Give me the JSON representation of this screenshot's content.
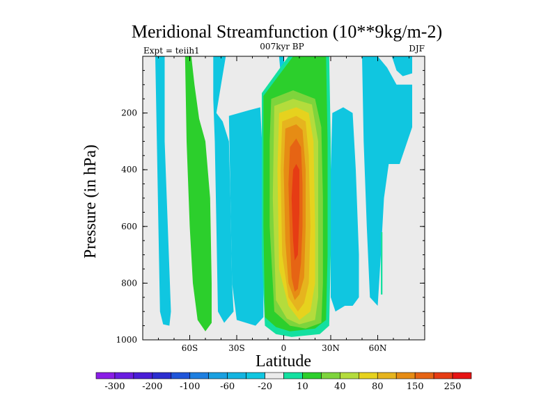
{
  "chart_data": {
    "type": "heatmap",
    "title": "Meridional Streamfunction (10**9kg/m-2)",
    "subtitle_left": "Expt = teiih1",
    "subtitle_center": "007kyr BP",
    "subtitle_right": "DJF",
    "xlabel": "Latitude",
    "ylabel": "Pressure (in hPa)",
    "xlim": [
      -90,
      90
    ],
    "ylim": [
      0,
      1000
    ],
    "y_inverted": true,
    "x_ticks": [
      {
        "value": -60,
        "label": "60S"
      },
      {
        "value": -30,
        "label": "30S"
      },
      {
        "value": 0,
        "label": "0"
      },
      {
        "value": 30,
        "label": "30N"
      },
      {
        "value": 60,
        "label": "60N"
      }
    ],
    "y_ticks": [
      {
        "value": 200,
        "label": "200"
      },
      {
        "value": 400,
        "label": "400"
      },
      {
        "value": 600,
        "label": "600"
      },
      {
        "value": 800,
        "label": "800"
      },
      {
        "value": 1000,
        "label": "1000"
      }
    ],
    "colorbar": {
      "colors": [
        "#8a1ee6",
        "#6a1ee0",
        "#4a1ed6",
        "#2c2ecf",
        "#1f55d9",
        "#1e7fe0",
        "#1aa0e0",
        "#14b4e0",
        "#10c6e0",
        "#ebebeb",
        "#14e0a0",
        "#2ccf2c",
        "#7ed43c",
        "#b4dc3c",
        "#e6d21e",
        "#e6b41e",
        "#e68c14",
        "#e66414",
        "#e63c14",
        "#e61414"
      ],
      "labels": [
        {
          "after_index": 0,
          "text": "-300"
        },
        {
          "after_index": 2,
          "text": "-200"
        },
        {
          "after_index": 4,
          "text": "-100"
        },
        {
          "after_index": 6,
          "text": "-60"
        },
        {
          "after_index": 8,
          "text": "-20"
        },
        {
          "after_index": 10,
          "text": "10"
        },
        {
          "after_index": 12,
          "text": "40"
        },
        {
          "after_index": 14,
          "text": "80"
        },
        {
          "after_index": 16,
          "text": "150"
        },
        {
          "after_index": 18,
          "text": "250"
        }
      ]
    },
    "fields": [
      {
        "name": "cyan-band-far-south",
        "color": "#10c6e0",
        "points": [
          [
            -82,
            0
          ],
          [
            -76,
            0
          ],
          [
            -76,
            300
          ],
          [
            -74,
            600
          ],
          [
            -72,
            900
          ],
          [
            -73,
            950
          ],
          [
            -77,
            945
          ],
          [
            -79,
            900
          ],
          [
            -80,
            600
          ],
          [
            -81,
            300
          ]
        ]
      },
      {
        "name": "green-band-south",
        "color": "#2ccf2c",
        "points": [
          [
            -63,
            0
          ],
          [
            -59,
            0
          ],
          [
            -57,
            100
          ],
          [
            -54,
            220
          ],
          [
            -50,
            300
          ],
          [
            -47,
            500
          ],
          [
            -46,
            800
          ],
          [
            -46,
            940
          ],
          [
            -50,
            970
          ],
          [
            -55,
            930
          ],
          [
            -58,
            800
          ],
          [
            -60,
            600
          ],
          [
            -62,
            300
          ]
        ]
      },
      {
        "name": "cyan-band-south-mid",
        "color": "#10c6e0",
        "points": [
          [
            -45,
            0
          ],
          [
            -37,
            0
          ],
          [
            -40,
            100
          ],
          [
            -43,
            200
          ],
          [
            -39,
            230
          ],
          [
            -35,
            300
          ],
          [
            -34,
            500
          ],
          [
            -33,
            800
          ],
          [
            -32,
            900
          ],
          [
            -38,
            940
          ],
          [
            -42,
            900
          ],
          [
            -43,
            600
          ],
          [
            -44,
            300
          ],
          [
            -45,
            150
          ]
        ]
      },
      {
        "name": "cyan-ring-south-of-cell",
        "color": "#10c6e0",
        "points": [
          [
            -35,
            210
          ],
          [
            -22,
            190
          ],
          [
            -15,
            180
          ],
          [
            -13,
            400
          ],
          [
            -13,
            700
          ],
          [
            -13,
            920
          ],
          [
            -18,
            950
          ],
          [
            -30,
            930
          ],
          [
            -33,
            800
          ],
          [
            -34,
            500
          ]
        ]
      },
      {
        "name": "cyan-band-north-mid",
        "color": "#10c6e0",
        "points": [
          [
            31,
            200
          ],
          [
            38,
            180
          ],
          [
            44,
            200
          ],
          [
            46,
            400
          ],
          [
            48,
            700
          ],
          [
            48,
            850
          ],
          [
            44,
            880
          ],
          [
            39,
            880
          ],
          [
            33,
            900
          ],
          [
            30,
            850
          ],
          [
            30,
            400
          ]
        ]
      },
      {
        "name": "cyan-band-far-north",
        "color": "#10c6e0",
        "points": [
          [
            50,
            0
          ],
          [
            60,
            0
          ],
          [
            66,
            40
          ],
          [
            72,
            100
          ],
          [
            82,
            100
          ],
          [
            82,
            250
          ],
          [
            74,
            380
          ],
          [
            67,
            380
          ],
          [
            64,
            500
          ],
          [
            62,
            700
          ],
          [
            60,
            880
          ],
          [
            55,
            850
          ],
          [
            53,
            600
          ],
          [
            51,
            300
          ]
        ]
      },
      {
        "name": "cyan-patch-north-top",
        "color": "#10c6e0",
        "points": [
          [
            69,
            0
          ],
          [
            82,
            0
          ],
          [
            82,
            60
          ],
          [
            76,
            70
          ],
          [
            72,
            50
          ]
        ]
      },
      {
        "name": "green-sliver-north",
        "color": "#14e0a0",
        "points": [
          [
            62,
            620
          ],
          [
            63,
            620
          ],
          [
            63,
            840
          ],
          [
            62,
            840
          ]
        ]
      },
      {
        "name": "cyan-patch-top-center",
        "color": "#10c6e0",
        "points": [
          [
            -3,
            0
          ],
          [
            0,
            0
          ],
          [
            1,
            80
          ],
          [
            -1,
            90
          ],
          [
            -2,
            60
          ]
        ]
      },
      {
        "name": "cell-10",
        "color": "#14e0a0",
        "points": [
          [
            -14,
            130
          ],
          [
            3,
            0
          ],
          [
            29,
            0
          ],
          [
            30,
            300
          ],
          [
            30,
            700
          ],
          [
            29,
            950
          ],
          [
            23,
            980
          ],
          [
            5,
            990
          ],
          [
            -5,
            980
          ],
          [
            -12,
            950
          ],
          [
            -14,
            700
          ]
        ]
      },
      {
        "name": "cell-20",
        "color": "#2ccf2c",
        "points": [
          [
            -13,
            140
          ],
          [
            6,
            0
          ],
          [
            27,
            0
          ],
          [
            28,
            300
          ],
          [
            28,
            700
          ],
          [
            27,
            930
          ],
          [
            20,
            960
          ],
          [
            4,
            970
          ],
          [
            -5,
            955
          ],
          [
            -12,
            920
          ],
          [
            -13,
            600
          ]
        ]
      },
      {
        "name": "cell-40",
        "color": "#7ed43c",
        "points": [
          [
            -8,
            150
          ],
          [
            6,
            120
          ],
          [
            20,
            150
          ],
          [
            24,
            250
          ],
          [
            25,
            500
          ],
          [
            25,
            800
          ],
          [
            24,
            940
          ],
          [
            14,
            960
          ],
          [
            4,
            950
          ],
          [
            -6,
            900
          ],
          [
            -9,
            600
          ],
          [
            -9,
            300
          ]
        ]
      },
      {
        "name": "cell-60",
        "color": "#b4dc3c",
        "points": [
          [
            -6,
            175
          ],
          [
            6,
            150
          ],
          [
            18,
            170
          ],
          [
            22,
            300
          ],
          [
            22,
            600
          ],
          [
            22,
            850
          ],
          [
            20,
            930
          ],
          [
            10,
            945
          ],
          [
            2,
            925
          ],
          [
            -5,
            860
          ],
          [
            -7,
            500
          ]
        ]
      },
      {
        "name": "cell-80",
        "color": "#e6d21e",
        "points": [
          [
            -3,
            200
          ],
          [
            8,
            180
          ],
          [
            16,
            200
          ],
          [
            19,
            300
          ],
          [
            20,
            600
          ],
          [
            20,
            800
          ],
          [
            17,
            900
          ],
          [
            10,
            930
          ],
          [
            3,
            880
          ],
          [
            -3,
            750
          ],
          [
            -4,
            400
          ]
        ]
      },
      {
        "name": "cell-100",
        "color": "#e6b41e",
        "points": [
          [
            -1,
            230
          ],
          [
            8,
            210
          ],
          [
            14,
            230
          ],
          [
            16,
            350
          ],
          [
            17,
            600
          ],
          [
            16,
            800
          ],
          [
            13,
            870
          ],
          [
            9,
            900
          ],
          [
            3,
            850
          ],
          [
            -1,
            700
          ],
          [
            -2,
            400
          ]
        ]
      },
      {
        "name": "cell-150",
        "color": "#e68c14",
        "points": [
          [
            1,
            255
          ],
          [
            8,
            240
          ],
          [
            12,
            260
          ],
          [
            14,
            400
          ],
          [
            14,
            600
          ],
          [
            13,
            780
          ],
          [
            10,
            840
          ],
          [
            7,
            860
          ],
          [
            3,
            800
          ],
          [
            1,
            650
          ],
          [
            0,
            400
          ]
        ]
      },
      {
        "name": "cell-200",
        "color": "#e66414",
        "points": [
          [
            4,
            320
          ],
          [
            8,
            290
          ],
          [
            11,
            320
          ],
          [
            12,
            450
          ],
          [
            12,
            600
          ],
          [
            11,
            730
          ],
          [
            9,
            820
          ],
          [
            7,
            830
          ],
          [
            5,
            780
          ],
          [
            4,
            650
          ],
          [
            3,
            450
          ]
        ]
      },
      {
        "name": "cell-250",
        "color": "#e63c14",
        "points": [
          [
            6,
            400
          ],
          [
            8,
            380
          ],
          [
            10,
            400
          ],
          [
            10,
            550
          ],
          [
            9,
            700
          ],
          [
            7,
            720
          ],
          [
            6,
            650
          ],
          [
            5,
            500
          ]
        ]
      }
    ]
  }
}
